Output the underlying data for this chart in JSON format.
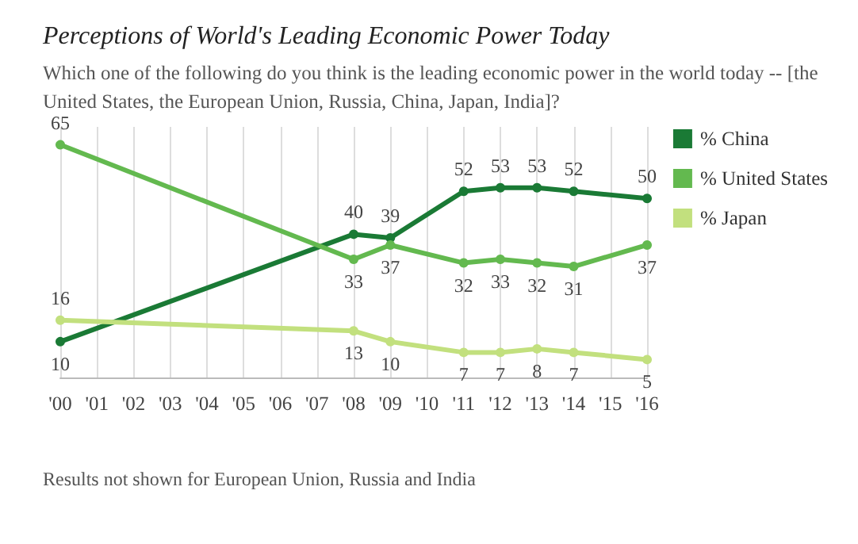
{
  "chart_data": {
    "type": "line",
    "title": "Perceptions of World's Leading Economic Power Today",
    "subtitle": "Which one of the following do you think is the leading economic power in the world today -- [the United States, the European Union, Russia, China, Japan, India]?",
    "x": [
      2000,
      2008,
      2009,
      2011,
      2012,
      2013,
      2014,
      2016
    ],
    "xlim": [
      2000,
      2016
    ],
    "xticks": [
      {
        "value": 2000,
        "label": "'00"
      },
      {
        "value": 2001,
        "label": "'01"
      },
      {
        "value": 2002,
        "label": "'02"
      },
      {
        "value": 2003,
        "label": "'03"
      },
      {
        "value": 2004,
        "label": "'04"
      },
      {
        "value": 2005,
        "label": "'05"
      },
      {
        "value": 2006,
        "label": "'06"
      },
      {
        "value": 2007,
        "label": "'07"
      },
      {
        "value": 2008,
        "label": "'08"
      },
      {
        "value": 2009,
        "label": "'09"
      },
      {
        "value": 2010,
        "label": "'10"
      },
      {
        "value": 2011,
        "label": "'11"
      },
      {
        "value": 2012,
        "label": "'12"
      },
      {
        "value": 2013,
        "label": "'13"
      },
      {
        "value": 2014,
        "label": "'14"
      },
      {
        "value": 2015,
        "label": "'15"
      },
      {
        "value": 2016,
        "label": "'16"
      }
    ],
    "series": [
      {
        "name": "% China",
        "color": "#1a7a35",
        "values": [
          10,
          40,
          39,
          52,
          53,
          53,
          52,
          50
        ]
      },
      {
        "name": "% United States",
        "color": "#63b94f",
        "values": [
          65,
          33,
          37,
          32,
          33,
          32,
          31,
          37
        ]
      },
      {
        "name": "% Japan",
        "color": "#c2e07e",
        "values": [
          16,
          13,
          10,
          7,
          7,
          8,
          7,
          5
        ]
      }
    ],
    "data_labels": true,
    "grid": "x",
    "legend": "top right",
    "marker": "circle",
    "tick_labels": "x",
    "annotations": [
      "Results not shown for European Union, Russia and India"
    ]
  }
}
